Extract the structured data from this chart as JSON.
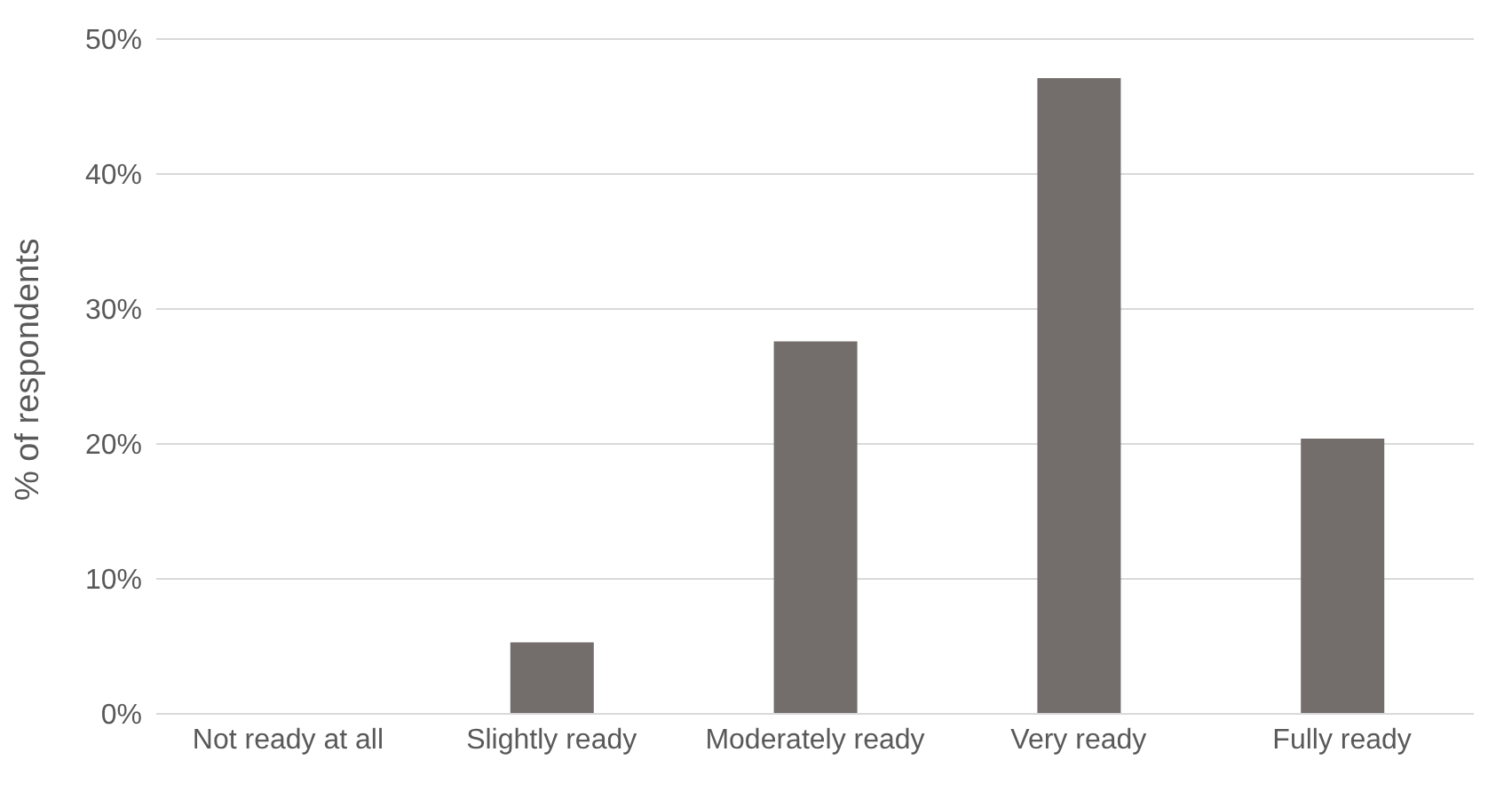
{
  "chart_data": {
    "type": "bar",
    "ylabel": "% of respondents",
    "categories": [
      "Not ready at all",
      "Slightly ready",
      "Moderately ready",
      "Very ready",
      "Fully ready"
    ],
    "values": [
      0,
      5.3,
      27.6,
      47.1,
      20.4
    ],
    "color": "#736e6c",
    "ylim": [
      0,
      50
    ],
    "yticks": [
      {
        "value": 0,
        "label": "0%"
      },
      {
        "value": 10,
        "label": "10%"
      },
      {
        "value": 20,
        "label": "20%"
      },
      {
        "value": 30,
        "label": "30%"
      },
      {
        "value": 40,
        "label": "40%"
      },
      {
        "value": 50,
        "label": "50%"
      }
    ],
    "grid": "y"
  }
}
